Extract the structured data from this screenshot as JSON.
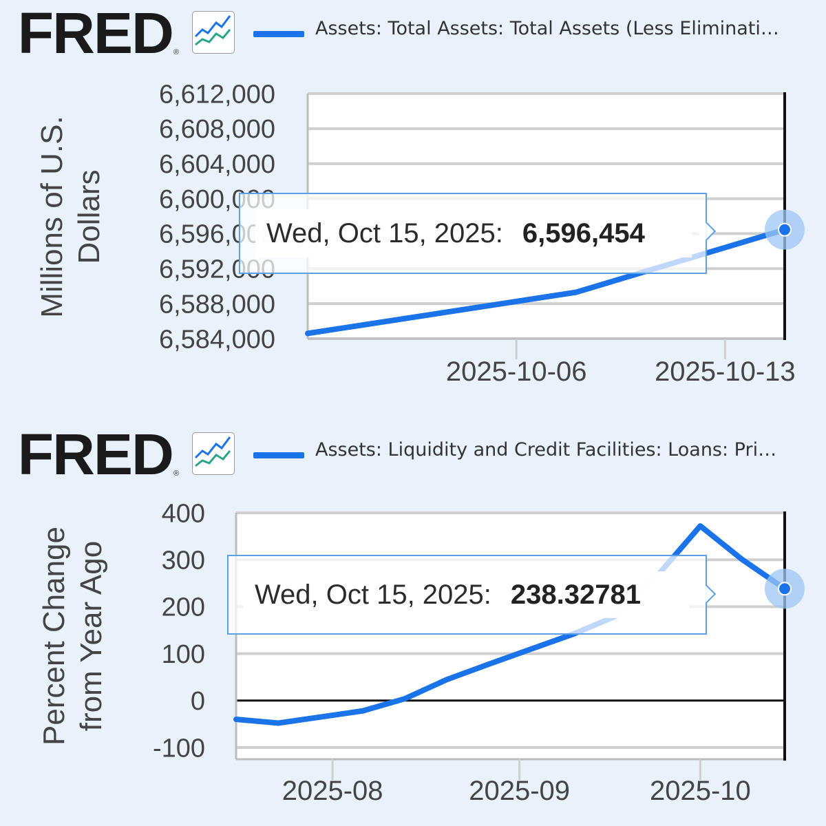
{
  "colors": {
    "series": "#1a73e8",
    "background": "#e9f1fb",
    "grid": "#cccccc"
  },
  "chart_data": [
    {
      "type": "line",
      "brand": "FRED",
      "legend": "Assets: Total Assets: Total Assets (Less Eliminati…",
      "ylabel": "Millions of U.S. Dollars",
      "xlabel": "",
      "ylim": [
        6584000,
        6612000
      ],
      "yticks": [
        6584000,
        6588000,
        6592000,
        6596000,
        6600000,
        6604000,
        6608000,
        6612000
      ],
      "ytick_labels": [
        "6,584,000",
        "6,588,000",
        "6,592,000",
        "6,596,000",
        "6,600,000",
        "6,604,000",
        "6,608,000",
        "6,612,000"
      ],
      "xlim": [
        "2025-09-29",
        "2025-10-15"
      ],
      "xticks": [
        "2025-10-06",
        "2025-10-13"
      ],
      "grid": true,
      "series": [
        {
          "x": [
            "2025-09-29",
            "2025-10-08",
            "2025-10-15"
          ],
          "y": [
            6584600,
            6589300,
            6596454
          ]
        }
      ],
      "tooltip": {
        "date": "Wed, Oct 15, 2025:",
        "value": "6,596,454"
      }
    },
    {
      "type": "line",
      "brand": "FRED",
      "legend": "Assets: Liquidity and Credit Facilities: Loans: Pri…",
      "ylabel": "Percent Change from Year Ago",
      "xlabel": "",
      "ylim": [
        -125,
        400
      ],
      "yticks": [
        -100,
        0,
        100,
        200,
        300,
        400
      ],
      "ytick_labels": [
        "-100",
        "0",
        "100",
        "200",
        "300",
        "400"
      ],
      "xlim": [
        "2025-07-16",
        "2025-10-15"
      ],
      "xticks": [
        "2025-08",
        "2025-09",
        "2025-10"
      ],
      "grid": true,
      "series": [
        {
          "x": [
            "2025-07-16",
            "2025-07-23",
            "2025-08-06",
            "2025-08-13",
            "2025-08-20",
            "2025-08-27",
            "2025-09-03",
            "2025-09-10",
            "2025-09-17",
            "2025-09-24",
            "2025-10-01",
            "2025-10-08",
            "2025-10-15"
          ],
          "y": [
            -40,
            -48,
            -22,
            4,
            45,
            78,
            110,
            142,
            180,
            268,
            372,
            300,
            238.32781
          ]
        }
      ],
      "tooltip": {
        "date": "Wed, Oct 15, 2025:",
        "value": "238.32781"
      }
    }
  ]
}
